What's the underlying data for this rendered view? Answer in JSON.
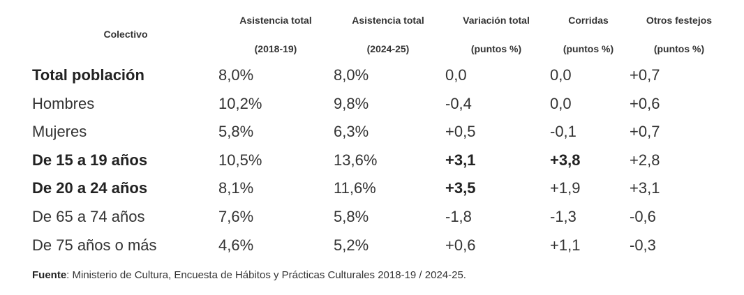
{
  "headers": [
    {
      "line1": "Colectivo",
      "line2": ""
    },
    {
      "line1": "Asistencia total",
      "line2": "(2018-19)"
    },
    {
      "line1": "Asistencia total",
      "line2": "(2024-25)"
    },
    {
      "line1": "Variación total",
      "line2": "(puntos %)"
    },
    {
      "line1": "Corridas",
      "line2": "(puntos %)"
    },
    {
      "line1": "Otros festejos",
      "line2": "(puntos %)"
    }
  ],
  "rows": [
    {
      "cells": [
        "Total población",
        "8,0%",
        "8,0%",
        "0,0",
        "0,0",
        "+0,7"
      ],
      "bold": [
        true,
        false,
        false,
        false,
        false,
        false
      ]
    },
    {
      "cells": [
        "Hombres",
        "10,2%",
        "9,8%",
        "-0,4",
        "0,0",
        "+0,6"
      ],
      "bold": [
        false,
        false,
        false,
        false,
        false,
        false
      ]
    },
    {
      "cells": [
        "Mujeres",
        "5,8%",
        "6,3%",
        "+0,5",
        "-0,1",
        "+0,7"
      ],
      "bold": [
        false,
        false,
        false,
        false,
        false,
        false
      ]
    },
    {
      "cells": [
        "De 15 a 19 años",
        "10,5%",
        "13,6%",
        "+3,1",
        "+3,8",
        "+2,8"
      ],
      "bold": [
        true,
        false,
        false,
        true,
        true,
        false
      ]
    },
    {
      "cells": [
        "De 20 a 24 años",
        "8,1%",
        "11,6%",
        "+3,5",
        "+1,9",
        "+3,1"
      ],
      "bold": [
        true,
        false,
        false,
        true,
        false,
        false
      ]
    },
    {
      "cells": [
        "De 65 a 74 años",
        "7,6%",
        "5,8%",
        "-1,8",
        "-1,3",
        "-0,6"
      ],
      "bold": [
        false,
        false,
        false,
        false,
        false,
        false
      ]
    },
    {
      "cells": [
        "De 75 años o más",
        "4,6%",
        "5,2%",
        "+0,6",
        "+1,1",
        "-0,3"
      ],
      "bold": [
        false,
        false,
        false,
        false,
        false,
        false
      ]
    }
  ],
  "footer": {
    "label": "Fuente",
    "text": ": Ministerio de Cultura, Encuesta de Hábitos y Prácticas Culturales 2018-19 / 2024-25."
  }
}
